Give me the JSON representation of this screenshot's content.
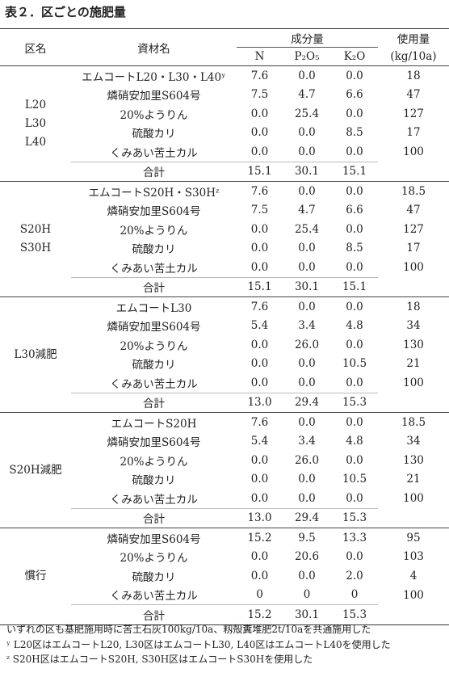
{
  "title": "表２．区ごとの施肥量",
  "table": {
    "header": {
      "plot": "区名",
      "material": "資材名",
      "component": "成分量",
      "n": "N",
      "p": "P₂O₅",
      "k": "K₂O",
      "amount": "使用量",
      "unit": "(kg/10a)"
    },
    "groups": [
      {
        "label": [
          "L20",
          "L30",
          "L40"
        ],
        "rows": [
          [
            "エムコートL20・L30・L40ʸ",
            "7.6",
            "0.0",
            "0.0",
            "18"
          ],
          [
            "燐硝安加里S604号",
            "7.5",
            "4.7",
            "6.6",
            "47"
          ],
          [
            "20%ようりん",
            "0.0",
            "25.4",
            "0.0",
            "127"
          ],
          [
            "硫酸カリ",
            "0.0",
            "0.0",
            "8.5",
            "17"
          ],
          [
            "くみあい苦土カル",
            "0.0",
            "0.0",
            "0.0",
            "100"
          ]
        ],
        "total": [
          "合計",
          "15.1",
          "30.1",
          "15.1"
        ]
      },
      {
        "label": [
          "S20H",
          "S30H"
        ],
        "rows": [
          [
            "エムコートS20H・S30Hᶻ",
            "7.6",
            "0.0",
            "0.0",
            "18.5"
          ],
          [
            "燐硝安加里S604号",
            "7.5",
            "4.7",
            "6.6",
            "47"
          ],
          [
            "20%ようりん",
            "0.0",
            "25.4",
            "0.0",
            "127"
          ],
          [
            "硫酸カリ",
            "0.0",
            "0.0",
            "8.5",
            "17"
          ],
          [
            "くみあい苦土カル",
            "0.0",
            "0.0",
            "0.0",
            "100"
          ]
        ],
        "total": [
          "合計",
          "15.1",
          "30.1",
          "15.1"
        ]
      },
      {
        "label": [
          "L30減肥"
        ],
        "rows": [
          [
            "エムコートL30",
            "7.6",
            "0.0",
            "0.0",
            "18"
          ],
          [
            "燐硝安加里S604号",
            "5.4",
            "3.4",
            "4.8",
            "34"
          ],
          [
            "20%ようりん",
            "0.0",
            "26.0",
            "0.0",
            "130"
          ],
          [
            "硫酸カリ",
            "0.0",
            "0.0",
            "10.5",
            "21"
          ],
          [
            "くみあい苦土カル",
            "0.0",
            "0.0",
            "0.0",
            "100"
          ]
        ],
        "total": [
          "合計",
          "13.0",
          "29.4",
          "15.3"
        ]
      },
      {
        "label": [
          "S20H減肥"
        ],
        "rows": [
          [
            "エムコートS20H",
            "7.6",
            "0.0",
            "0.0",
            "18.5"
          ],
          [
            "燐硝安加里S604号",
            "5.4",
            "3.4",
            "4.8",
            "34"
          ],
          [
            "20%ようりん",
            "0.0",
            "26.0",
            "0.0",
            "130"
          ],
          [
            "硫酸カリ",
            "0.0",
            "0.0",
            "10.5",
            "21"
          ],
          [
            "くみあい苦土カル",
            "0.0",
            "0.0",
            "0.0",
            "100"
          ]
        ],
        "total": [
          "合計",
          "13.0",
          "29.4",
          "15.3"
        ]
      },
      {
        "label": [
          "慣行"
        ],
        "rows": [
          [
            "燐硝安加里S604号",
            "15.2",
            "9.5",
            "13.3",
            "95"
          ],
          [
            "20%ようりん",
            "0.0",
            "20.6",
            "0.0",
            "103"
          ],
          [
            "硫酸カリ",
            "0.0",
            "0.0",
            "2.0",
            "4"
          ],
          [
            "くみあい苦土カル",
            "0",
            "0",
            "0",
            "100"
          ]
        ],
        "total": [
          "合計",
          "15.2",
          "30.1",
          "15.3"
        ]
      }
    ]
  },
  "notes": [
    "いずれの区も基肥施用時に苦土石灰100kg/10a、籾殻糞堆肥2t/10aを共通施用した",
    "ʸ L20区はエムコートL20, L30区はエムコートL30, L40区はエムコートL40を使用した",
    "ᶻ S20H区はエムコートS20H, S30H区はエムコートS30Hを使用した"
  ]
}
